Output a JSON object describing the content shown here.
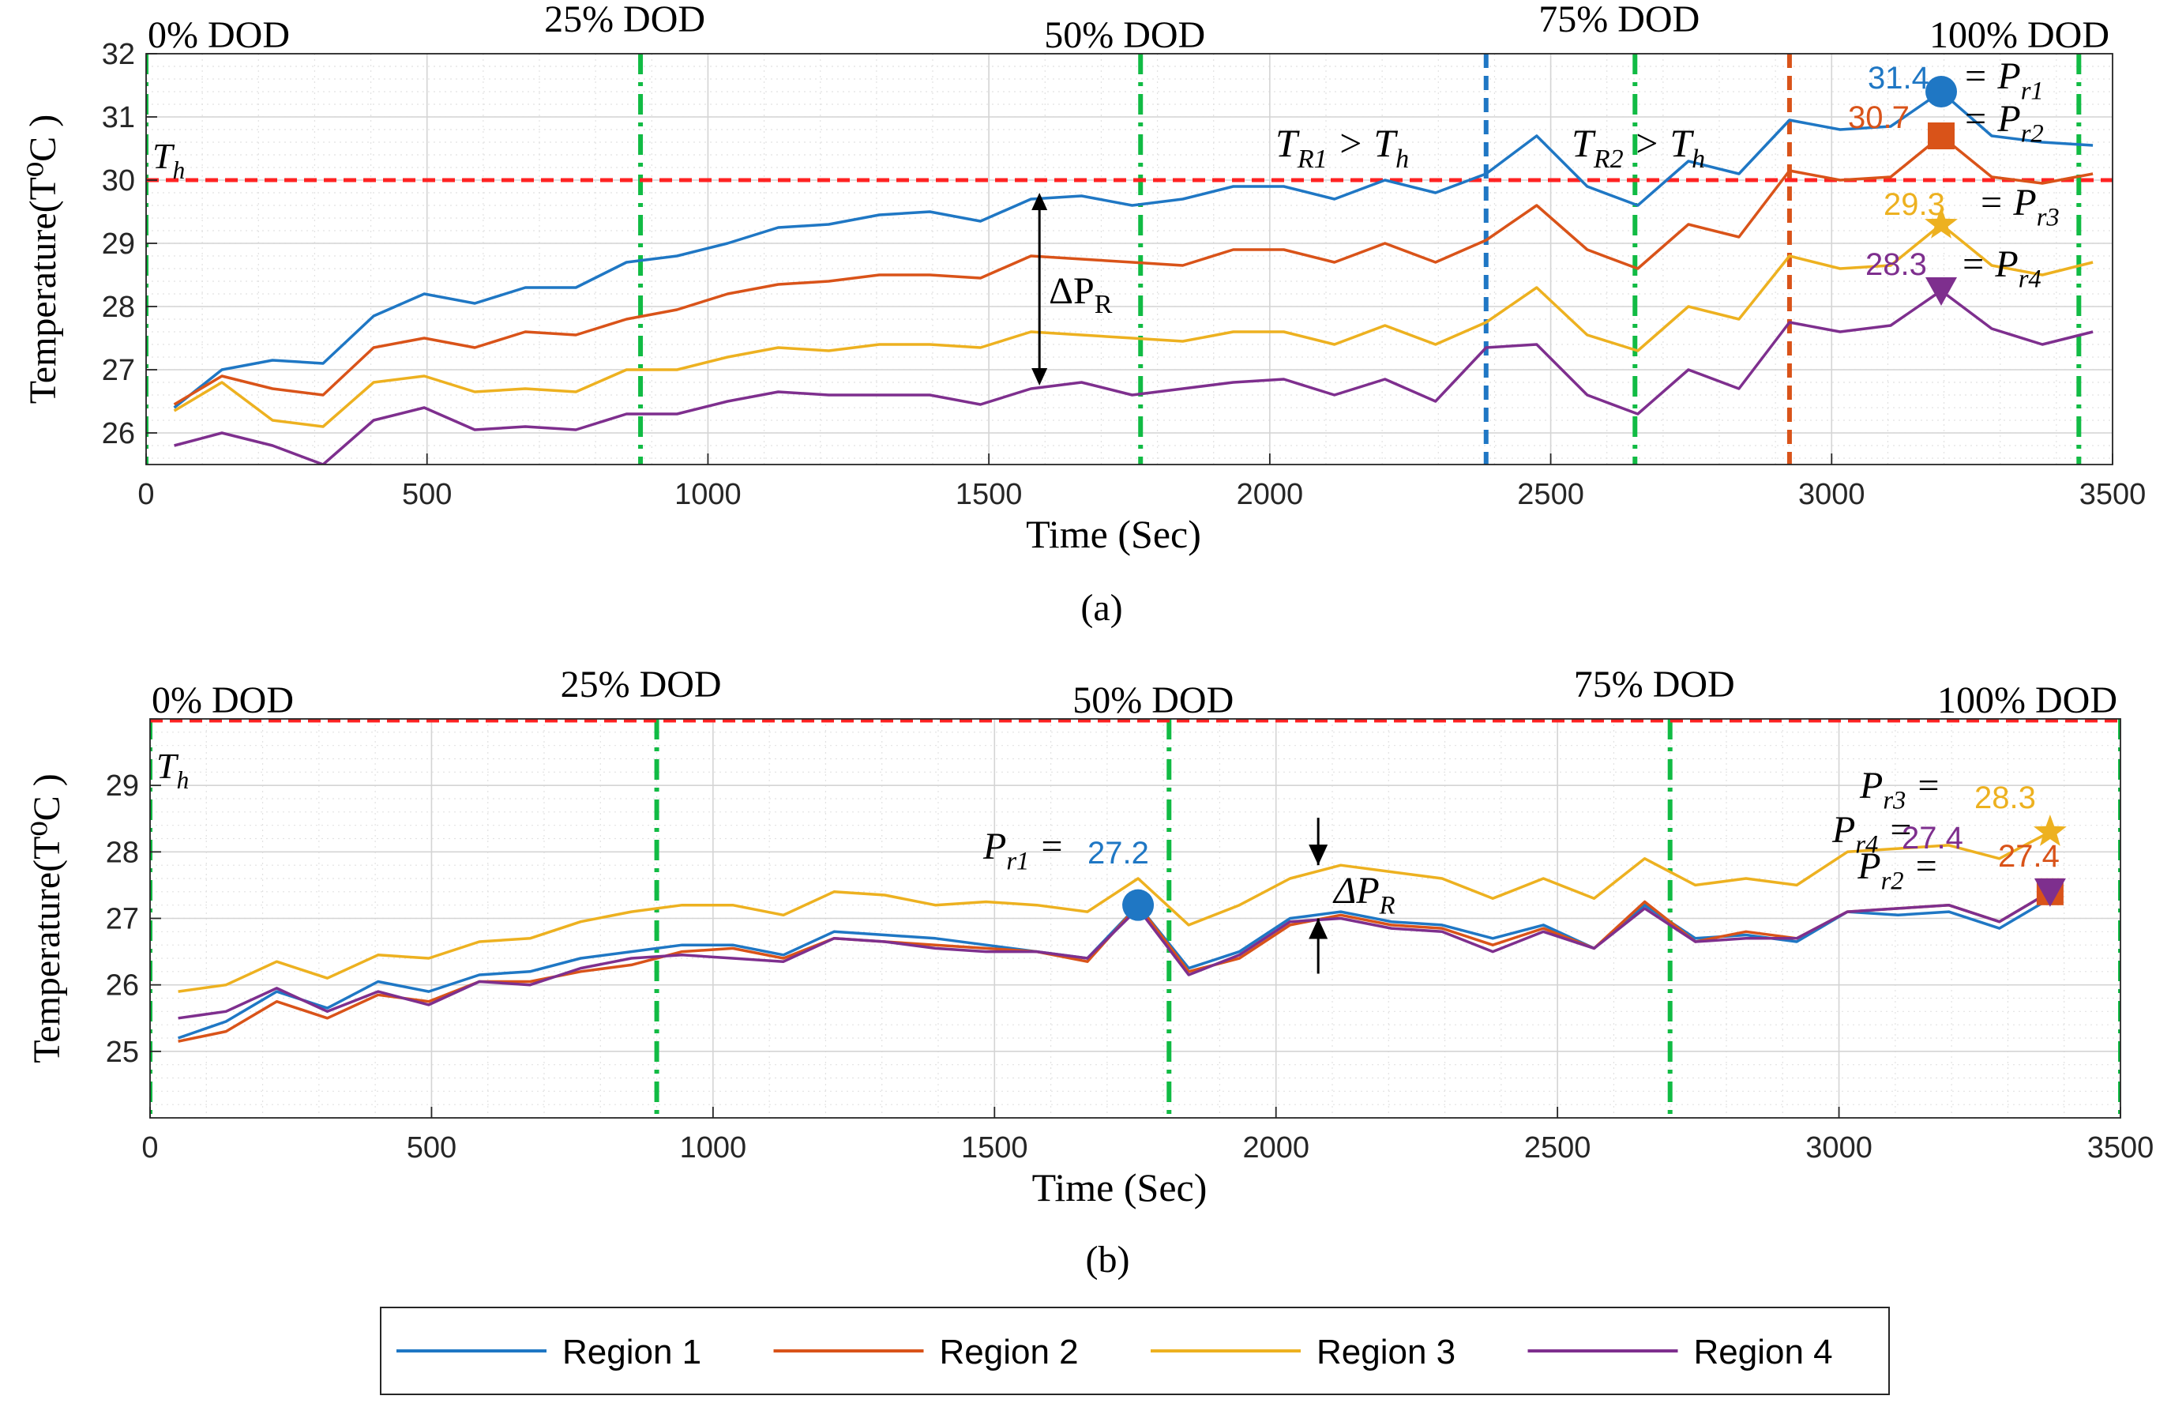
{
  "colors": {
    "region1": "#1f77c4",
    "region2": "#d95319",
    "region3": "#edb120",
    "region4": "#7e2f8e",
    "threshold": "#ff2222",
    "dod_line": "#11bb44",
    "trig_blue": "#1f77c4",
    "trig_orange": "#d95319",
    "grid": "#d9d9d9",
    "axis": "#262626"
  },
  "chart_data": [
    {
      "id": "a",
      "type": "line",
      "caption": "(a)",
      "xlabel": "Time (Sec)",
      "ylabel": "Temperature(T⁰C )",
      "xlim": [
        0,
        3500
      ],
      "ylim": [
        25.5,
        32
      ],
      "xticks": [
        0,
        500,
        1000,
        1500,
        2000,
        2500,
        3000,
        3500
      ],
      "xtick_labels": [
        "0",
        "500",
        "1000",
        "1500",
        "2000",
        "2500",
        "3000",
        "3500"
      ],
      "yticks": [
        26,
        27,
        28,
        29,
        30,
        31,
        32
      ],
      "ytick_labels": [
        "26",
        "27",
        "28",
        "29",
        "30",
        "31",
        "32"
      ],
      "grid": true,
      "threshold": {
        "y": 30,
        "label_base": "T",
        "label_sub": "h"
      },
      "dod_lines": [
        {
          "x": 0,
          "label": "0% DOD"
        },
        {
          "x": 880,
          "label": "25% DOD"
        },
        {
          "x": 1770,
          "label": "50% DOD"
        },
        {
          "x": 2650,
          "label": "75% DOD"
        },
        {
          "x": 3440,
          "label": "100% DOD"
        }
      ],
      "trigger_lines": [
        {
          "x": 2385,
          "color_key": "trig_blue"
        },
        {
          "x": 2925,
          "color_key": "trig_orange"
        }
      ],
      "x": [
        50,
        135,
        225,
        315,
        405,
        495,
        585,
        675,
        765,
        855,
        945,
        1035,
        1125,
        1215,
        1305,
        1395,
        1485,
        1575,
        1665,
        1755,
        1845,
        1935,
        2025,
        2115,
        2205,
        2295,
        2385,
        2475,
        2565,
        2655,
        2745,
        2835,
        2925,
        3015,
        3105,
        3195,
        3285,
        3375,
        3465
      ],
      "series": [
        {
          "name": "Region 1",
          "color_key": "region1",
          "values": [
            26.4,
            27.0,
            27.15,
            27.1,
            27.85,
            28.2,
            28.05,
            28.3,
            28.3,
            28.7,
            28.8,
            29.0,
            29.25,
            29.3,
            29.45,
            29.5,
            29.35,
            29.7,
            29.75,
            29.6,
            29.7,
            29.9,
            29.9,
            29.7,
            30.0,
            29.8,
            30.1,
            30.7,
            29.9,
            29.6,
            30.3,
            30.1,
            30.95,
            30.8,
            30.85,
            31.4,
            30.7,
            30.6,
            30.55
          ]
        },
        {
          "name": "Region 2",
          "color_key": "region2",
          "values": [
            26.45,
            26.9,
            26.7,
            26.6,
            27.35,
            27.5,
            27.35,
            27.6,
            27.55,
            27.8,
            27.95,
            28.2,
            28.35,
            28.4,
            28.5,
            28.5,
            28.45,
            28.8,
            28.75,
            28.7,
            28.65,
            28.9,
            28.9,
            28.7,
            29.0,
            28.7,
            29.05,
            29.6,
            28.9,
            28.6,
            29.3,
            29.1,
            30.15,
            30.0,
            30.05,
            30.7,
            30.05,
            29.95,
            30.1
          ]
        },
        {
          "name": "Region 3",
          "color_key": "region3",
          "values": [
            26.35,
            26.8,
            26.2,
            26.1,
            26.8,
            26.9,
            26.65,
            26.7,
            26.65,
            27.0,
            27.0,
            27.2,
            27.35,
            27.3,
            27.4,
            27.4,
            27.35,
            27.6,
            27.55,
            27.5,
            27.45,
            27.6,
            27.6,
            27.4,
            27.7,
            27.4,
            27.75,
            28.3,
            27.55,
            27.3,
            28.0,
            27.8,
            28.8,
            28.6,
            28.65,
            29.3,
            28.65,
            28.5,
            28.7
          ]
        },
        {
          "name": "Region 4",
          "color_key": "region4",
          "values": [
            25.8,
            26.0,
            25.8,
            25.5,
            26.2,
            26.4,
            26.05,
            26.1,
            26.05,
            26.3,
            26.3,
            26.5,
            26.65,
            26.6,
            26.6,
            26.6,
            26.45,
            26.7,
            26.8,
            26.6,
            26.7,
            26.8,
            26.85,
            26.6,
            26.85,
            26.5,
            27.35,
            27.4,
            26.6,
            26.3,
            27.0,
            26.7,
            27.75,
            27.6,
            27.7,
            28.25,
            27.65,
            27.4,
            27.6
          ]
        }
      ],
      "markers": [
        {
          "series": "Region 1",
          "shape": "circle",
          "x": 3195,
          "y": 31.4,
          "value_label": "31.4",
          "p_sub": "r1"
        },
        {
          "series": "Region 2",
          "shape": "square",
          "x": 3195,
          "y": 30.7,
          "value_label": "30.7",
          "p_sub": "r2"
        },
        {
          "series": "Region 3",
          "shape": "star",
          "x": 3195,
          "y": 29.3,
          "value_label": "29.3",
          "p_sub": "r3"
        },
        {
          "series": "Region 4",
          "shape": "triangle",
          "x": 3195,
          "y": 28.25,
          "value_label": "28.3",
          "p_sub": "r4"
        }
      ],
      "annotations": {
        "delta_label": "ΔP",
        "delta_sub": "R",
        "delta_x": 1590,
        "delta_y_top": 29.8,
        "delta_y_bottom": 26.75,
        "cond1": {
          "base": "T",
          "sub": "R1",
          "rest": " > T",
          "rest_sub": "h"
        },
        "cond2": {
          "base": "T",
          "sub": "R2",
          "rest": " > T",
          "rest_sub": "h"
        }
      }
    },
    {
      "id": "b",
      "type": "line",
      "caption": "(b)",
      "xlabel": "Time (Sec)",
      "ylabel": "Temperature(T⁰C )",
      "xlim": [
        0,
        3500
      ],
      "ylim": [
        24,
        30
      ],
      "xticks": [
        0,
        500,
        1000,
        1500,
        2000,
        2500,
        3000,
        3500
      ],
      "xtick_labels": [
        "0",
        "500",
        "1000",
        "1500",
        "2000",
        "2500",
        "3000",
        "3500"
      ],
      "yticks": [
        25,
        26,
        27,
        28,
        29
      ],
      "ytick_labels": [
        "25",
        "26",
        "27",
        "28",
        "29"
      ],
      "grid": true,
      "threshold": {
        "y": 30,
        "label_base": "T",
        "label_sub": "h"
      },
      "dod_lines": [
        {
          "x": 0,
          "label": "0% DOD"
        },
        {
          "x": 900,
          "label": "25% DOD"
        },
        {
          "x": 1810,
          "label": "50% DOD"
        },
        {
          "x": 2700,
          "label": "75% DOD"
        },
        {
          "x": 3500,
          "label": "100% DOD"
        }
      ],
      "trigger_lines": [],
      "x": [
        50,
        135,
        225,
        315,
        405,
        495,
        585,
        675,
        765,
        855,
        945,
        1035,
        1125,
        1215,
        1305,
        1395,
        1485,
        1575,
        1665,
        1755,
        1845,
        1935,
        2025,
        2115,
        2205,
        2295,
        2385,
        2475,
        2565,
        2655,
        2745,
        2835,
        2925,
        3015,
        3105,
        3195,
        3285,
        3375
      ],
      "series": [
        {
          "name": "Region 1",
          "color_key": "region1",
          "values": [
            25.2,
            25.45,
            25.9,
            25.65,
            26.05,
            25.9,
            26.15,
            26.2,
            26.4,
            26.5,
            26.6,
            26.6,
            26.45,
            26.8,
            26.75,
            26.7,
            26.6,
            26.5,
            26.4,
            27.2,
            26.25,
            26.5,
            27.0,
            27.1,
            26.95,
            26.9,
            26.7,
            26.9,
            26.55,
            27.2,
            26.7,
            26.75,
            26.65,
            27.1,
            27.05,
            27.1,
            26.85,
            27.3
          ]
        },
        {
          "name": "Region 2",
          "color_key": "region2",
          "values": [
            25.15,
            25.3,
            25.75,
            25.5,
            25.85,
            25.75,
            26.05,
            26.05,
            26.2,
            26.3,
            26.5,
            26.55,
            26.4,
            26.7,
            26.65,
            26.6,
            26.55,
            26.5,
            26.35,
            27.2,
            26.2,
            26.4,
            26.9,
            27.05,
            26.9,
            26.85,
            26.6,
            26.85,
            26.55,
            27.25,
            26.65,
            26.8,
            26.7,
            27.1,
            27.15,
            27.2,
            26.95,
            27.4
          ]
        },
        {
          "name": "Region 3",
          "color_key": "region3",
          "values": [
            25.9,
            26.0,
            26.35,
            26.1,
            26.45,
            26.4,
            26.65,
            26.7,
            26.95,
            27.1,
            27.2,
            27.2,
            27.05,
            27.4,
            27.35,
            27.2,
            27.25,
            27.2,
            27.1,
            27.6,
            26.9,
            27.2,
            27.6,
            27.8,
            27.7,
            27.6,
            27.3,
            27.6,
            27.3,
            27.9,
            27.5,
            27.6,
            27.5,
            28.0,
            28.05,
            28.1,
            27.9,
            28.3
          ]
        },
        {
          "name": "Region 4",
          "color_key": "region4",
          "values": [
            25.5,
            25.6,
            25.95,
            25.6,
            25.9,
            25.7,
            26.05,
            26.0,
            26.25,
            26.4,
            26.45,
            26.4,
            26.35,
            26.7,
            26.65,
            26.55,
            26.5,
            26.5,
            26.4,
            27.15,
            26.15,
            26.45,
            26.95,
            27.0,
            26.85,
            26.8,
            26.5,
            26.8,
            26.55,
            27.15,
            26.65,
            26.7,
            26.7,
            27.1,
            27.15,
            27.2,
            26.95,
            27.4
          ]
        }
      ],
      "markers": [
        {
          "series": "Region 1",
          "shape": "circle",
          "x": 1755,
          "y": 27.2,
          "value_label": "27.2",
          "p_sub": "r1"
        },
        {
          "series": "Region 2",
          "shape": "square",
          "x": 3375,
          "y": 27.4,
          "value_label": "27.4",
          "p_sub": "r2"
        },
        {
          "series": "Region 3",
          "shape": "star",
          "x": 3375,
          "y": 28.3,
          "value_label": "28.3",
          "p_sub": "r3"
        },
        {
          "series": "Region 4",
          "shape": "triangle",
          "x": 3375,
          "y": 27.4,
          "value_label": "27.4",
          "p_sub": "r4"
        }
      ],
      "annotations": {
        "delta_label": "ΔP",
        "delta_sub": "R",
        "delta_x": 2075,
        "delta_y_top": 27.8,
        "delta_y_bottom": 27.0
      }
    }
  ],
  "legend": {
    "entries": [
      {
        "label": "Region 1",
        "color_key": "region1"
      },
      {
        "label": "Region 2",
        "color_key": "region2"
      },
      {
        "label": "Region 3",
        "color_key": "region3"
      },
      {
        "label": "Region 4",
        "color_key": "region4"
      }
    ]
  }
}
